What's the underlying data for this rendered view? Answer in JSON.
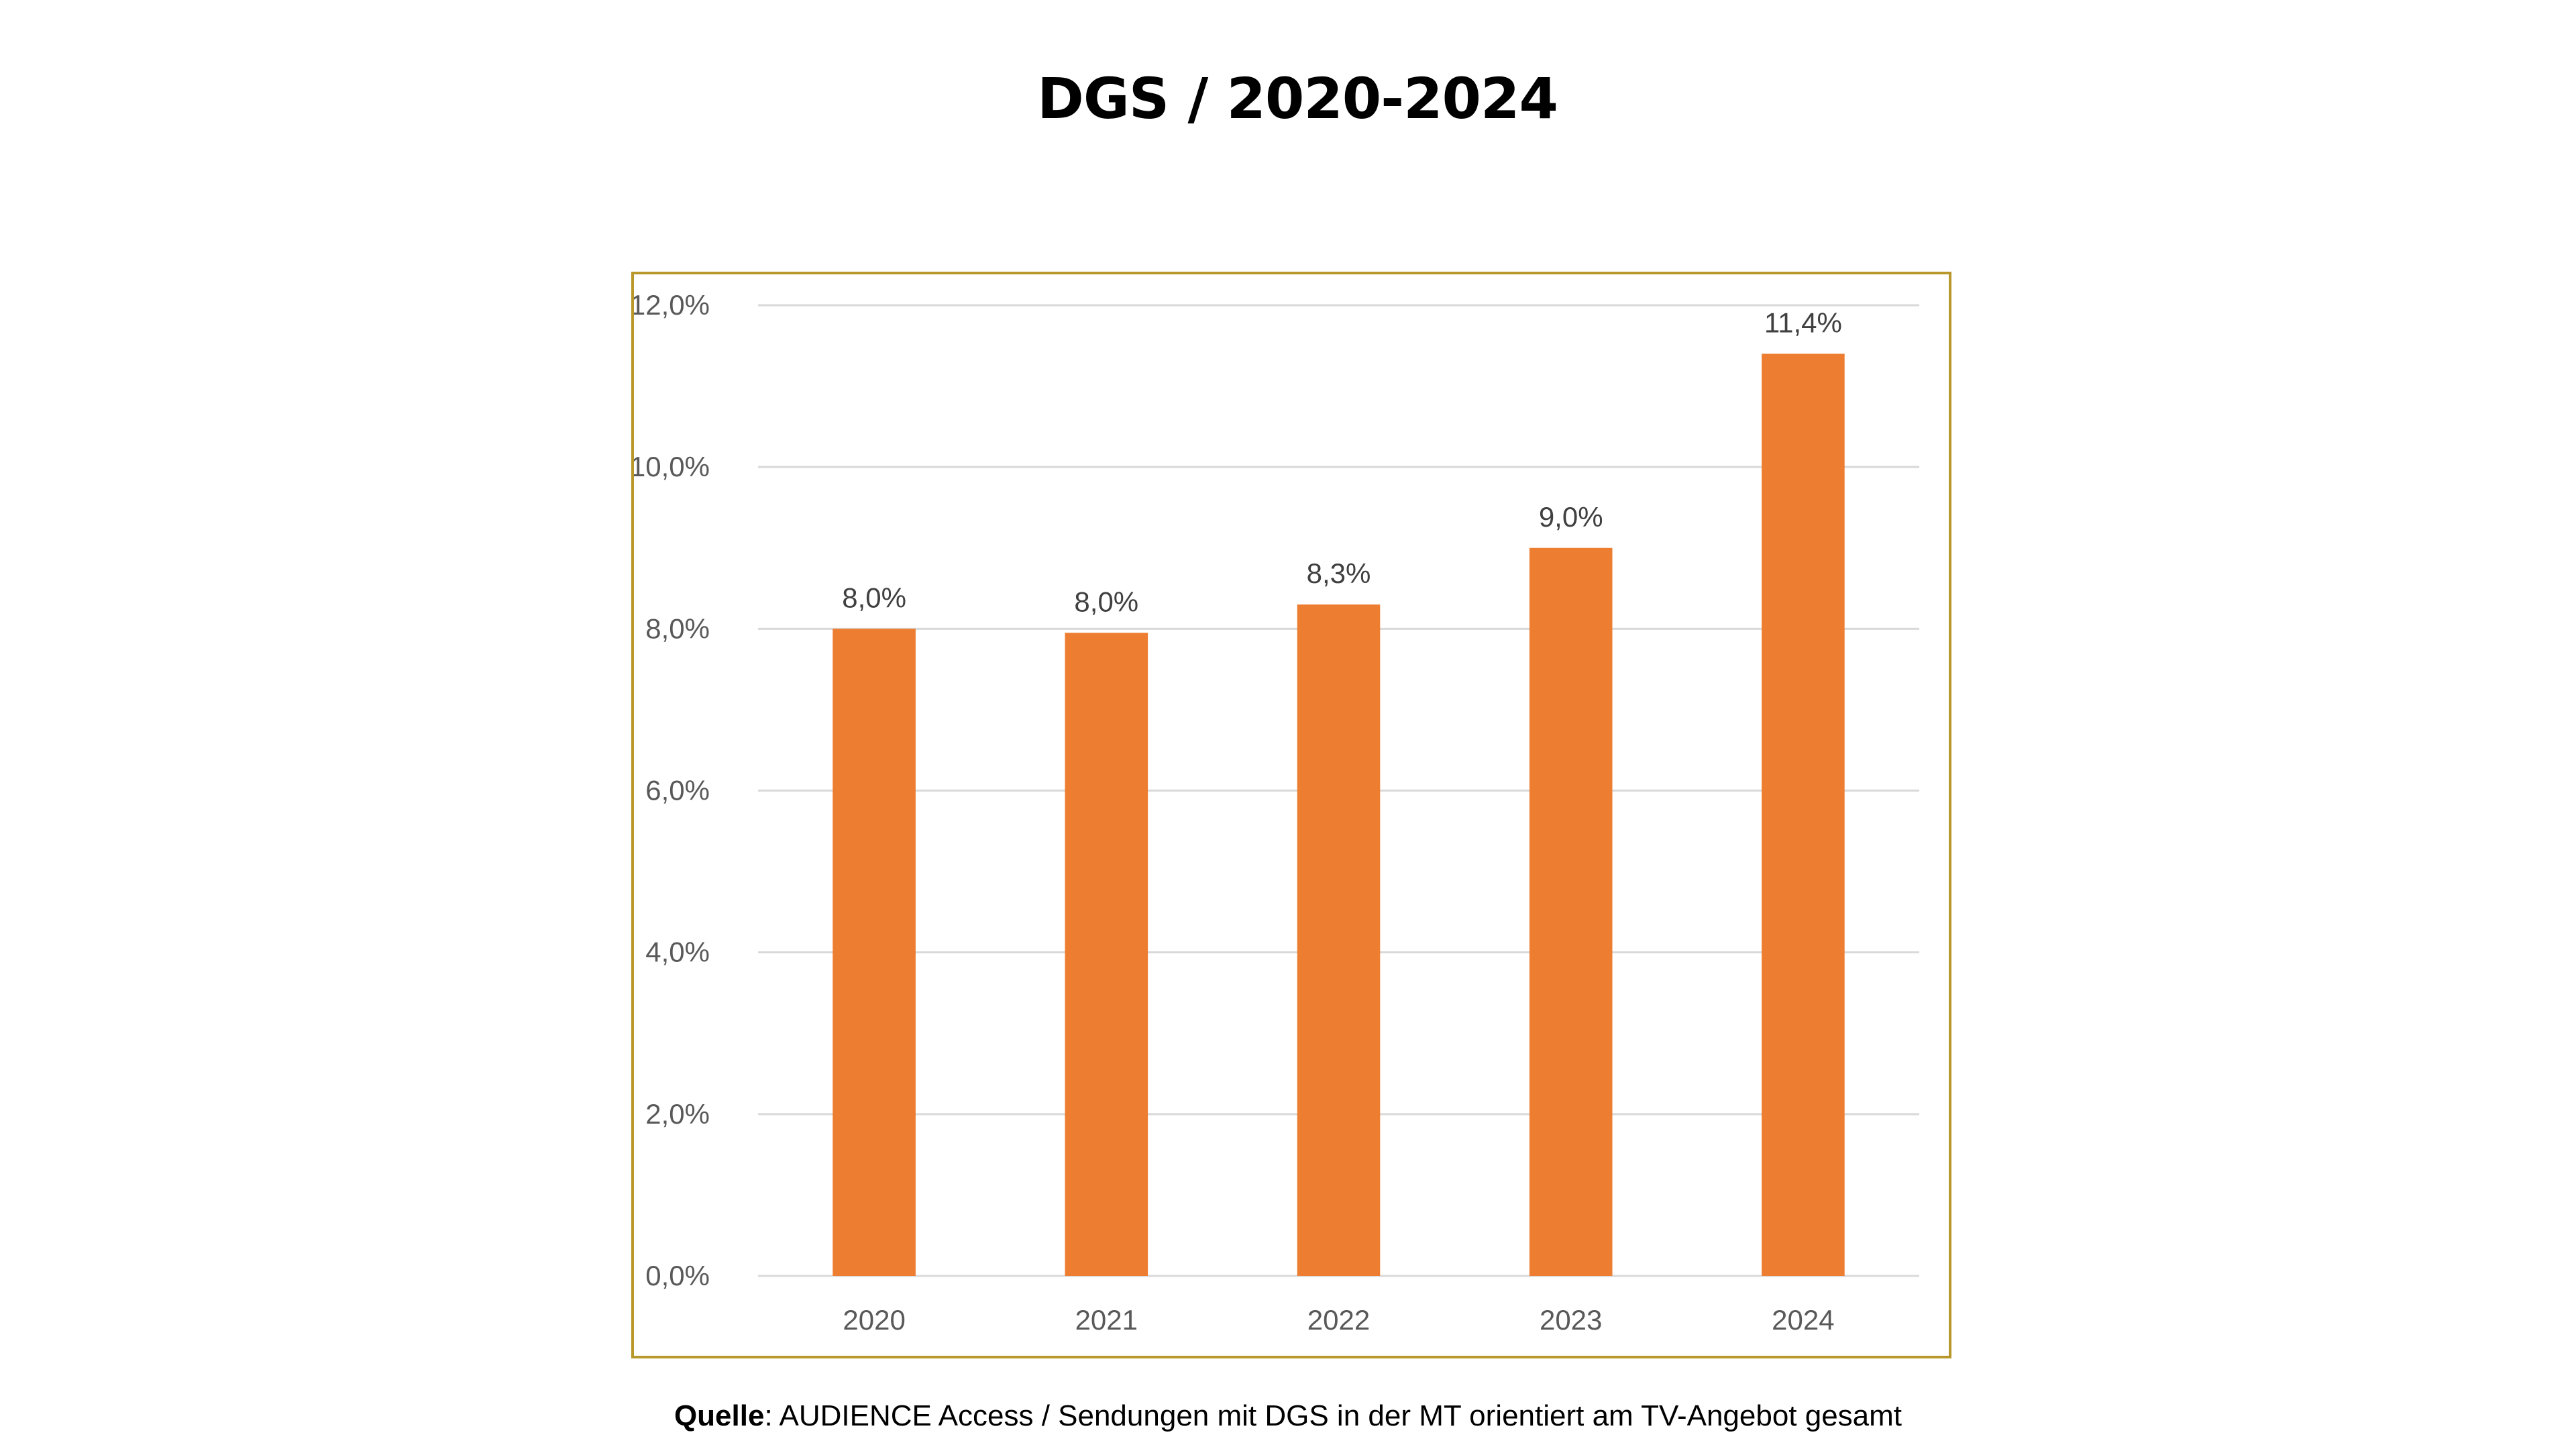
{
  "page": {
    "title": "DGS / 2020-2024",
    "caption": {
      "label": "Quelle",
      "separator": ":",
      "text": " AUDIENCE Access / Sendungen mit DGS in der MT orientiert am TV-Angebot gesamt"
    }
  },
  "colors": {
    "bar": "#ED7D31",
    "frame": "#B8982A",
    "gridline": "#D9D9D9",
    "tick_text": "#595959",
    "data_label_text": "#404040"
  },
  "chart_data": {
    "type": "bar",
    "title": "DGS / 2020-2024",
    "xlabel": "",
    "ylabel": "",
    "categories": [
      "2020",
      "2021",
      "2022",
      "2023",
      "2024"
    ],
    "values": [
      8.0,
      7.95,
      8.3,
      9.0,
      11.4
    ],
    "data_labels": [
      "8,0%",
      "8,0%",
      "8,3%",
      "9,0%",
      "11,4%"
    ],
    "ylim": [
      0,
      12
    ],
    "yticks": [
      0,
      2,
      4,
      6,
      8,
      10,
      12
    ],
    "ytick_labels": [
      "0,0%",
      "2,0%",
      "4,0%",
      "6,0%",
      "8,0%",
      "10,0%",
      "12,0%"
    ],
    "grid": true,
    "legend": "none",
    "unit": "%"
  }
}
